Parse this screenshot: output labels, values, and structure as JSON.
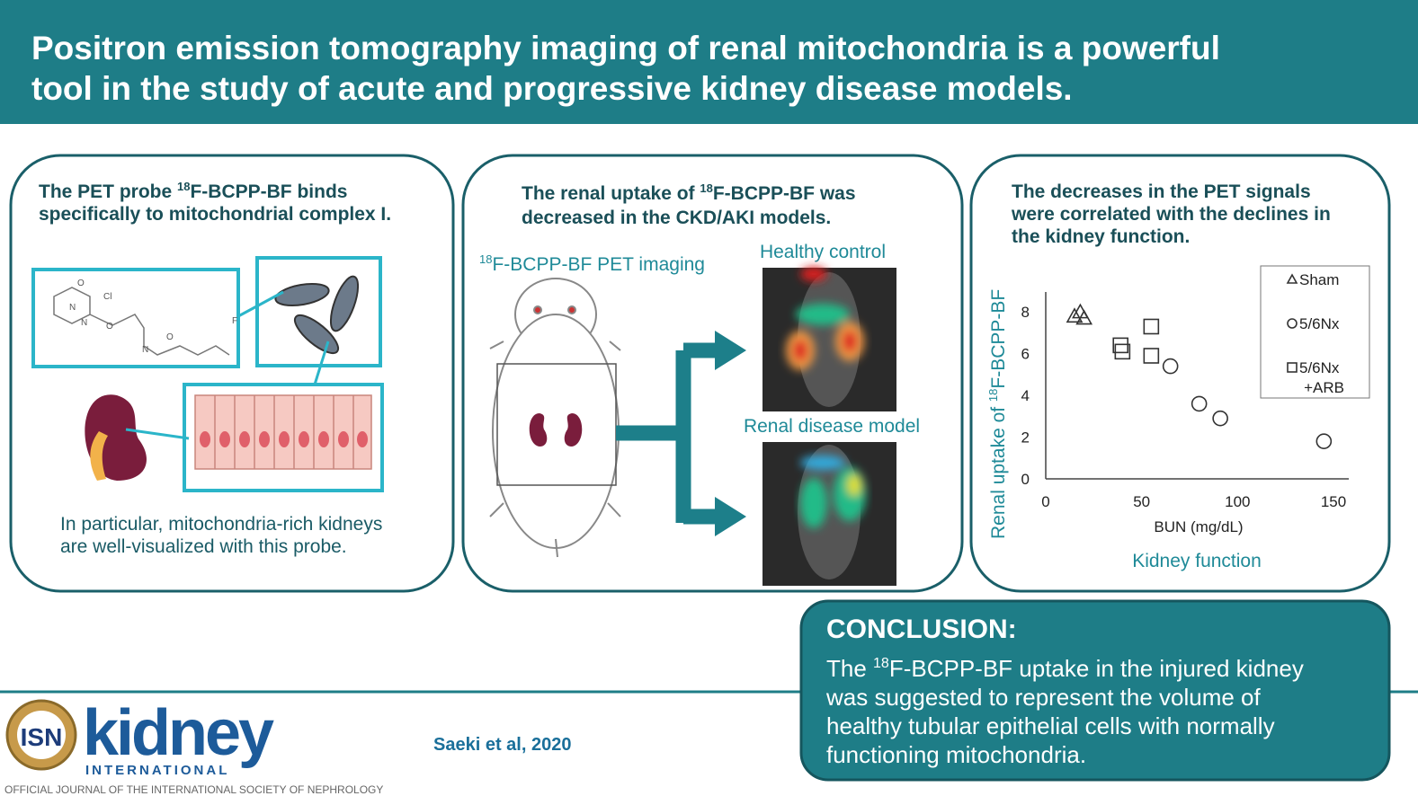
{
  "header": {
    "title_lines": [
      "Positron emission tomography imaging of renal mitochondria is a powerful",
      "tool in the study of acute and progressive kidney disease models."
    ]
  },
  "panels": [
    {
      "heading_lines": [
        [
          "The PET probe ",
          "18",
          "F-BCPP-BF binds"
        ],
        [
          "specifically to mitochondrial complex I."
        ]
      ],
      "molecule_labels": [
        "O",
        "Cl",
        "N",
        "N",
        "O",
        "N",
        "O",
        "F"
      ],
      "caption_lines": [
        "In particular, mitochondria-rich kidneys",
        "are well-visualized with this probe."
      ]
    },
    {
      "heading_lines": [
        [
          "The renal uptake of ",
          "18",
          "F-BCPP-BF was"
        ],
        [
          "decreased in the CKD/AKI models."
        ]
      ],
      "imaging_label": [
        "18",
        "F-BCPP-BF PET imaging"
      ],
      "healthy_label": "Healthy control",
      "disease_label": "Renal disease model"
    },
    {
      "heading_lines": [
        "The decreases in the PET signals",
        "were correlated with the declines in",
        "the kidney function."
      ],
      "chart": {
        "type": "scatter",
        "y_label": [
          "Renal uptake of ",
          "18",
          "F-BCPP-BF"
        ],
        "x_label": "BUN (mg/dL)",
        "subtitle": "Kidney function",
        "xlim": [
          0,
          150
        ],
        "ylim": [
          0,
          9
        ],
        "xticks": [
          0,
          50,
          100,
          150
        ],
        "yticks": [
          0,
          2,
          4,
          6,
          8
        ],
        "series": [
          {
            "name": [
              "Sham"
            ],
            "marker": "triangle",
            "x": [
              15,
              18,
              20
            ],
            "values": [
              7.8,
              8.0,
              7.7
            ]
          },
          {
            "name": [
              "5/6Nx"
            ],
            "marker": "circle",
            "x": [
              65,
              80,
              91,
              145
            ],
            "values": [
              5.4,
              3.6,
              2.9,
              1.8
            ]
          },
          {
            "name": [
              "5/6Nx",
              "+ARB"
            ],
            "marker": "square",
            "x": [
              55,
              39,
              40,
              55
            ],
            "values": [
              7.3,
              6.4,
              6.1,
              5.9
            ]
          }
        ]
      }
    }
  ],
  "conclusion": {
    "title": "CONCLUSION:",
    "lines": [
      [
        "The ",
        "18",
        "F-BCPP-BF uptake in the injured kidney"
      ],
      [
        "was suggested to represent the volume of"
      ],
      [
        "healthy tubular epithelial cells with normally"
      ],
      [
        "functioning mitochondria."
      ]
    ]
  },
  "footer": {
    "logo_badge": "ISN",
    "logo_word": "kidney",
    "logo_sub": "INTERNATIONAL",
    "journal_line": "OFFICIAL JOURNAL OF THE INTERNATIONAL SOCIETY OF NEPHROLOGY",
    "citation": "Saeki et al, 2020"
  }
}
